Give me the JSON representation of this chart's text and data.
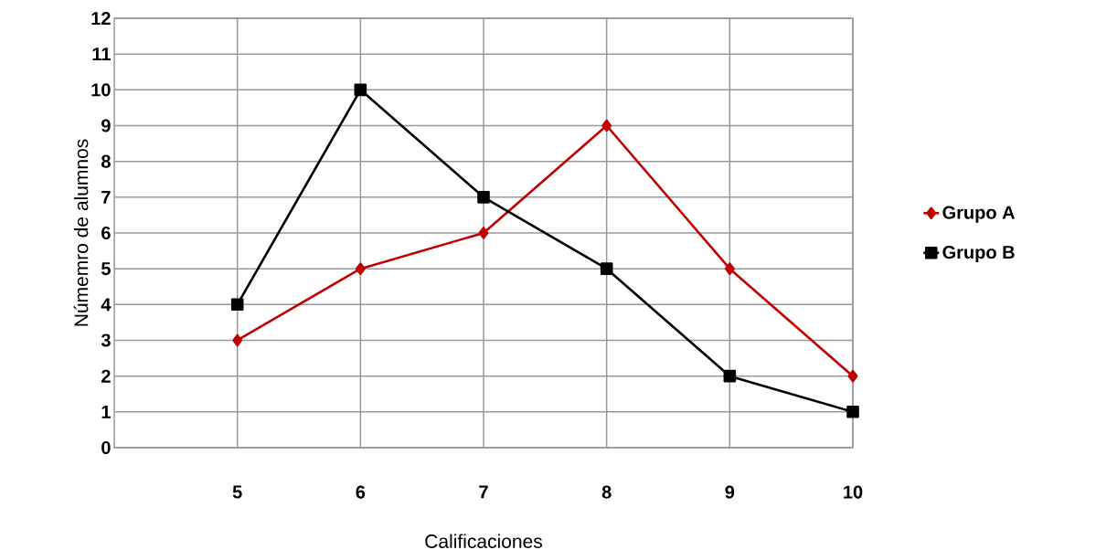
{
  "chart_data": {
    "type": "line",
    "xlabel": "Calificaciones",
    "ylabel": "Númemro de alumnos",
    "x": [
      5,
      6,
      7,
      8,
      9,
      10
    ],
    "xlim": [
      4,
      10
    ],
    "xticks": [
      5,
      6,
      7,
      8,
      9,
      10
    ],
    "ylim": [
      0,
      12
    ],
    "yticks": [
      0,
      1,
      2,
      3,
      4,
      5,
      6,
      7,
      8,
      9,
      10,
      11,
      12
    ],
    "grid": true,
    "legend": "right",
    "line_style": "solid",
    "series": [
      {
        "name": "Grupo A",
        "color": "#c00000",
        "marker": "diamond",
        "values": [
          3,
          5,
          6,
          9,
          5,
          2
        ]
      },
      {
        "name": "Grupo B",
        "color": "#000000",
        "marker": "square",
        "values": [
          4,
          10,
          7,
          5,
          2,
          1
        ]
      }
    ]
  }
}
